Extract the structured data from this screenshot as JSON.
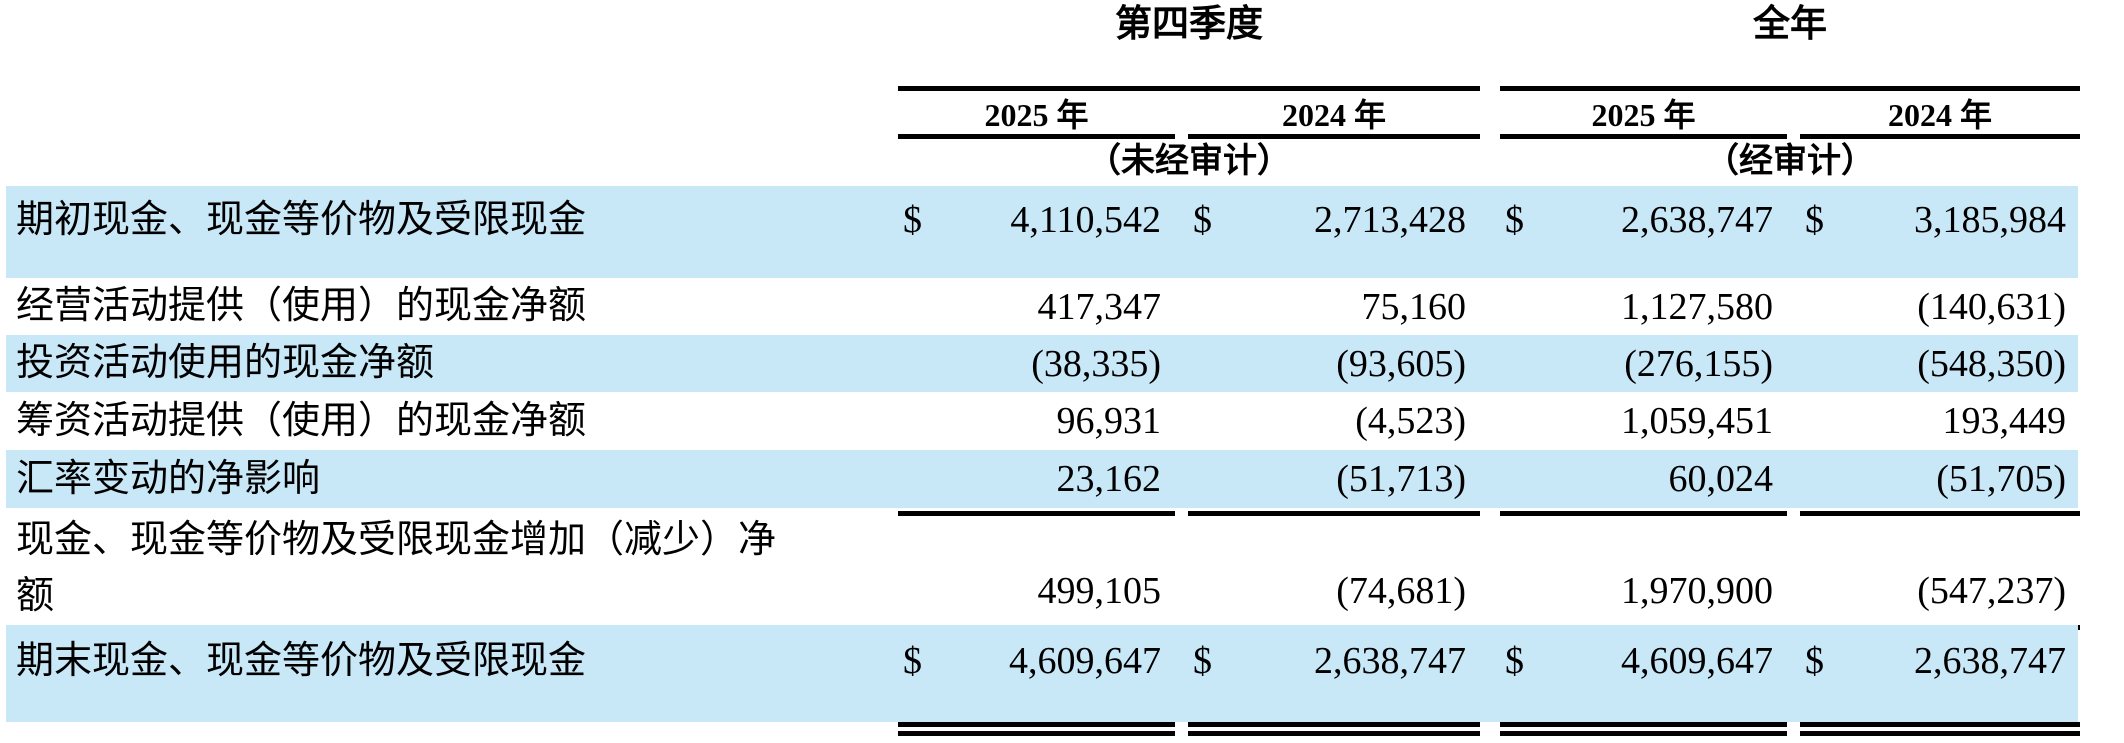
{
  "currency_symbol": "$",
  "colors": {
    "highlight": "#c8e8f8",
    "rule": "#000000",
    "text": "#000000",
    "background": "#ffffff"
  },
  "header": {
    "groups": [
      {
        "label": "第四季度",
        "audit_note": "（未经审计）",
        "years": [
          "2025 年",
          "2024 年"
        ]
      },
      {
        "label": "全年",
        "audit_note": "（经审计）",
        "years": [
          "2025 年",
          "2024 年"
        ]
      }
    ]
  },
  "rows": [
    {
      "label": "期初现金、现金等价物及受限现金",
      "highlighted": true,
      "currency": true,
      "values": [
        "4,110,542",
        "2,713,428",
        "2,638,747",
        "3,185,984"
      ]
    },
    {
      "label": "经营活动提供（使用）的现金净额",
      "highlighted": false,
      "currency": false,
      "values": [
        "417,347",
        "75,160",
        "1,127,580",
        "(140,631)"
      ]
    },
    {
      "label": "投资活动使用的现金净额",
      "highlighted": true,
      "currency": false,
      "values": [
        "(38,335)",
        "(93,605)",
        "(276,155)",
        "(548,350)"
      ]
    },
    {
      "label": "筹资活动提供（使用）的现金净额",
      "highlighted": false,
      "currency": false,
      "values": [
        "96,931",
        "(4,523)",
        "1,059,451",
        "193,449"
      ]
    },
    {
      "label": "汇率变动的净影响",
      "highlighted": true,
      "currency": false,
      "values": [
        "23,162",
        "(51,713)",
        "60,024",
        "(51,705)"
      ]
    },
    {
      "label": "现金、现金等价物及受限现金增加（减少）净额",
      "highlighted": false,
      "currency": false,
      "values": [
        "499,105",
        "(74,681)",
        "1,970,900",
        "(547,237)"
      ]
    },
    {
      "label": "期末现金、现金等价物及受限现金",
      "highlighted": true,
      "currency": true,
      "values": [
        "4,609,647",
        "2,638,747",
        "4,609,647",
        "2,638,747"
      ]
    }
  ]
}
